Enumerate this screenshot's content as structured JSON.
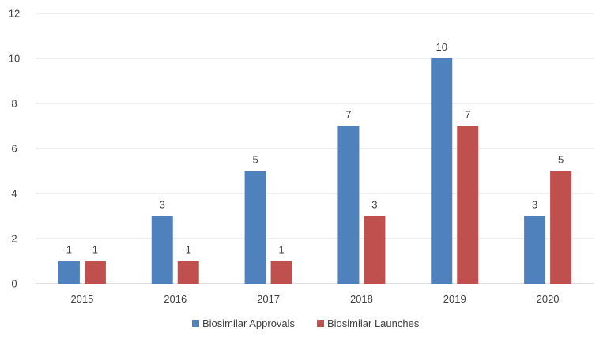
{
  "chart_data": {
    "type": "bar",
    "title": "",
    "xlabel": "",
    "ylabel": "",
    "categories": [
      "2015",
      "2016",
      "2017",
      "2018",
      "2019",
      "2020"
    ],
    "series": [
      {
        "name": "Biosimilar Approvals",
        "color": "#4f81bd",
        "values": [
          1,
          3,
          5,
          7,
          10,
          3
        ]
      },
      {
        "name": "Biosimilar Launches",
        "color": "#c0504d",
        "values": [
          1,
          1,
          1,
          3,
          7,
          5
        ]
      }
    ],
    "ylim": [
      0,
      12
    ],
    "yticks": [
      0,
      2,
      4,
      6,
      8,
      10,
      12
    ],
    "grid": true,
    "legend_position": "bottom"
  }
}
